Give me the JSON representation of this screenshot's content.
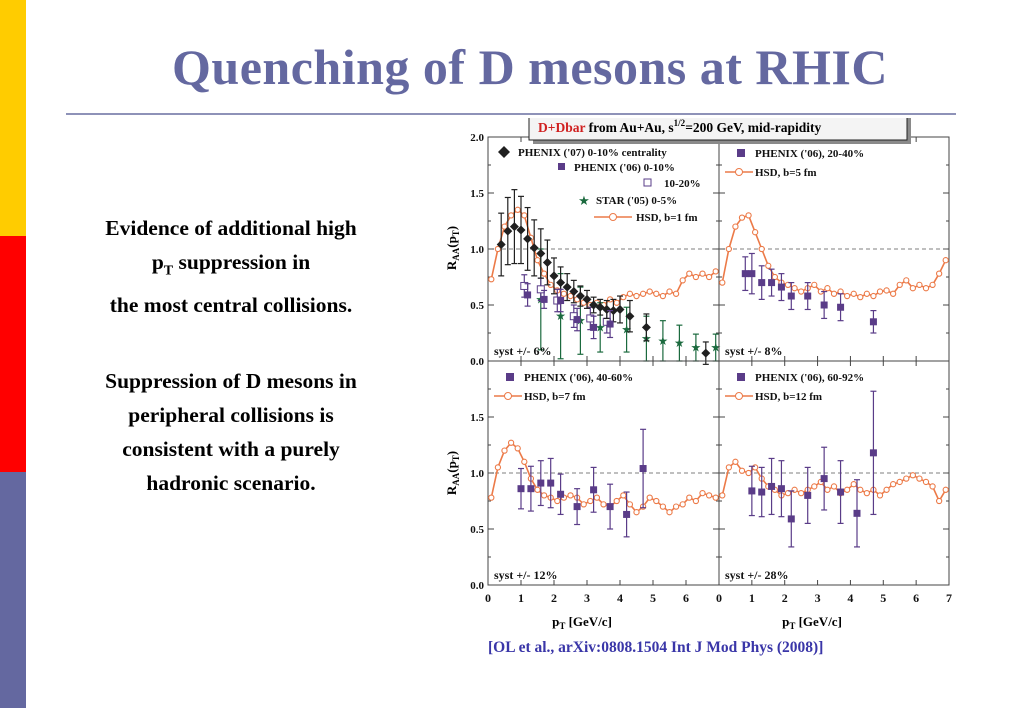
{
  "slide": {
    "title": "Quenching of D mesons at RHIC",
    "bullet1_a": "Evidence of additional  high",
    "bullet1_p": "p",
    "bullet1_sub": "T",
    "bullet1_b": " suppression in",
    "bullet1_c": "the most central collisions.",
    "bullet2_a": "Suppression of D mesons in",
    "bullet2_b": "peripheral collisions is",
    "bullet2_c": "consistent with a purely",
    "bullet2_d": "hadronic scenario.",
    "citation": "[OL et al., arXiv:0808.1504  Int J Mod Phys (2008)]",
    "stripe_colors": [
      "#ffcc00",
      "#ff0000",
      "#6468a0"
    ],
    "title_color": "#6468a0"
  },
  "chart_data": {
    "type": "scatter",
    "header": {
      "red_part": "D+Dbar",
      "text1": " from Au+Au, s",
      "sup": "1/2",
      "text2": "=200 GeV, mid-rapidity"
    },
    "ylabel": "R_AA(p_T)",
    "ylabel_main": "R",
    "ylabel_sub": "AA",
    "ylabel_paren": "(p",
    "ylabel_paren_sub": "T",
    "ylabel_close": ")",
    "xlabel_main": "p",
    "xlabel_sub": "T",
    "xlabel_unit": " [GeV/c]",
    "xlim": [
      0,
      7
    ],
    "ylim": [
      0,
      2
    ],
    "y_ticks": [
      "0.0",
      "0.5",
      "1.0",
      "1.5",
      "2.0"
    ],
    "x_ticks_left": [
      "0",
      "1",
      "2",
      "3",
      "4",
      "5",
      "6"
    ],
    "x_ticks_right": [
      "0",
      "1",
      "2",
      "3",
      "4",
      "5",
      "6",
      "7"
    ],
    "reference_line": 1.0,
    "colors": {
      "phenix": "#5a3c88",
      "phenix07": "#202020",
      "star": "#1b6a3e",
      "hsd": "#ec7a48",
      "header_red": "#d02020"
    },
    "panels": [
      {
        "id": "0-10",
        "syst": "syst +/- 6%",
        "legend": [
          "PHENIX ('07) 0-10% centrality",
          "PHENIX ('06) 0-10%",
          "10-20%",
          "STAR ('05) 0-5%",
          "HSD, b=1 fm"
        ],
        "hsd": [
          [
            0.1,
            0.73
          ],
          [
            0.3,
            1.0
          ],
          [
            0.5,
            1.2
          ],
          [
            0.7,
            1.3
          ],
          [
            0.9,
            1.35
          ],
          [
            1.1,
            1.3
          ],
          [
            1.3,
            1.1
          ],
          [
            1.5,
            0.9
          ],
          [
            1.7,
            0.78
          ],
          [
            1.9,
            0.68
          ],
          [
            2.1,
            0.63
          ],
          [
            2.3,
            0.6
          ],
          [
            2.5,
            0.58
          ],
          [
            2.7,
            0.55
          ],
          [
            2.9,
            0.52
          ],
          [
            3.1,
            0.5
          ],
          [
            3.3,
            0.52
          ],
          [
            3.5,
            0.5
          ],
          [
            3.7,
            0.55
          ],
          [
            3.9,
            0.52
          ],
          [
            4.1,
            0.57
          ],
          [
            4.3,
            0.6
          ],
          [
            4.5,
            0.58
          ],
          [
            4.7,
            0.6
          ],
          [
            4.9,
            0.62
          ],
          [
            5.1,
            0.6
          ],
          [
            5.3,
            0.58
          ],
          [
            5.5,
            0.62
          ],
          [
            5.7,
            0.6
          ],
          [
            5.9,
            0.72
          ],
          [
            6.1,
            0.78
          ],
          [
            6.3,
            0.75
          ],
          [
            6.5,
            0.78
          ],
          [
            6.7,
            0.75
          ],
          [
            6.9,
            0.8
          ]
        ],
        "phenix07": [
          [
            0.4,
            1.04,
            0.28
          ],
          [
            0.6,
            1.16,
            0.3
          ],
          [
            0.8,
            1.2,
            0.33
          ],
          [
            1.0,
            1.17,
            0.3
          ],
          [
            1.2,
            1.09,
            0.28
          ],
          [
            1.4,
            1.01,
            0.25
          ],
          [
            1.6,
            0.96,
            0.22
          ],
          [
            1.8,
            0.88,
            0.2
          ],
          [
            2.0,
            0.76,
            0.16
          ],
          [
            2.2,
            0.7,
            0.14
          ],
          [
            2.4,
            0.66,
            0.12
          ],
          [
            2.6,
            0.62,
            0.1
          ],
          [
            2.8,
            0.58,
            0.09
          ],
          [
            3.0,
            0.55,
            0.08
          ],
          [
            3.2,
            0.5,
            0.07
          ],
          [
            3.4,
            0.48,
            0.07
          ],
          [
            3.6,
            0.46,
            0.08
          ],
          [
            3.8,
            0.45,
            0.1
          ],
          [
            4.0,
            0.46,
            0.12
          ],
          [
            4.3,
            0.4,
            0.14
          ],
          [
            4.8,
            0.3,
            0.12
          ],
          [
            6.6,
            0.07,
            0.1
          ]
        ],
        "phenix06": [
          [
            1.2,
            0.59,
            0.1
          ],
          [
            1.7,
            0.55,
            0.08
          ],
          [
            2.2,
            0.54,
            0.1
          ],
          [
            2.7,
            0.37,
            0.1
          ],
          [
            3.2,
            0.3,
            0.1
          ],
          [
            3.7,
            0.33,
            0.12
          ]
        ],
        "phenix06_1020": [
          [
            1.1,
            0.67,
            0.1
          ],
          [
            1.6,
            0.64,
            0.1
          ],
          [
            2.1,
            0.54,
            0.1
          ],
          [
            2.6,
            0.4,
            0.1
          ],
          [
            3.1,
            0.38,
            0.1
          ],
          [
            3.6,
            0.35,
            0.1
          ]
        ],
        "star": [
          [
            1.6,
            0.55,
            0.45
          ],
          [
            2.2,
            0.4,
            0.38
          ],
          [
            2.8,
            0.36,
            0.3
          ],
          [
            3.4,
            0.3,
            0.22
          ],
          [
            4.2,
            0.28,
            0.2
          ],
          [
            4.8,
            0.2,
            0.2
          ],
          [
            5.3,
            0.18,
            0.18
          ],
          [
            5.8,
            0.16,
            0.16
          ],
          [
            6.3,
            0.12,
            0.12
          ],
          [
            6.9,
            0.12,
            0.12
          ]
        ]
      },
      {
        "id": "20-40",
        "syst": "syst +/- 8%",
        "legend": [
          "PHENIX ('06), 20-40%",
          "HSD, b=5 fm"
        ],
        "hsd": [
          [
            0.1,
            0.7
          ],
          [
            0.3,
            1.0
          ],
          [
            0.5,
            1.2
          ],
          [
            0.7,
            1.28
          ],
          [
            0.9,
            1.3
          ],
          [
            1.1,
            1.15
          ],
          [
            1.3,
            1.0
          ],
          [
            1.5,
            0.85
          ],
          [
            1.7,
            0.75
          ],
          [
            1.9,
            0.7
          ],
          [
            2.1,
            0.68
          ],
          [
            2.3,
            0.65
          ],
          [
            2.5,
            0.62
          ],
          [
            2.7,
            0.65
          ],
          [
            2.9,
            0.68
          ],
          [
            3.1,
            0.62
          ],
          [
            3.3,
            0.65
          ],
          [
            3.5,
            0.6
          ],
          [
            3.7,
            0.62
          ],
          [
            3.9,
            0.58
          ],
          [
            4.1,
            0.6
          ],
          [
            4.3,
            0.57
          ],
          [
            4.5,
            0.6
          ],
          [
            4.7,
            0.58
          ],
          [
            4.9,
            0.62
          ],
          [
            5.1,
            0.63
          ],
          [
            5.3,
            0.6
          ],
          [
            5.5,
            0.68
          ],
          [
            5.7,
            0.72
          ],
          [
            5.9,
            0.65
          ],
          [
            6.1,
            0.68
          ],
          [
            6.3,
            0.65
          ],
          [
            6.5,
            0.68
          ],
          [
            6.7,
            0.78
          ],
          [
            6.9,
            0.9
          ]
        ],
        "phenix06": [
          [
            0.8,
            0.78,
            0.15
          ],
          [
            1.0,
            0.78,
            0.18
          ],
          [
            1.3,
            0.7,
            0.15
          ],
          [
            1.6,
            0.7,
            0.12
          ],
          [
            1.9,
            0.66,
            0.12
          ],
          [
            2.2,
            0.58,
            0.12
          ],
          [
            2.7,
            0.58,
            0.12
          ],
          [
            3.2,
            0.5,
            0.12
          ],
          [
            3.7,
            0.48,
            0.12
          ],
          [
            4.7,
            0.35,
            0.1
          ]
        ]
      },
      {
        "id": "40-60",
        "syst": "syst +/- 12%",
        "legend": [
          "PHENIX ('06), 40-60%",
          "HSD, b=7 fm"
        ],
        "hsd": [
          [
            0.1,
            0.78
          ],
          [
            0.3,
            1.05
          ],
          [
            0.5,
            1.2
          ],
          [
            0.7,
            1.27
          ],
          [
            0.9,
            1.22
          ],
          [
            1.1,
            1.1
          ],
          [
            1.3,
            0.95
          ],
          [
            1.5,
            0.85
          ],
          [
            1.7,
            0.8
          ],
          [
            1.9,
            0.78
          ],
          [
            2.1,
            0.75
          ],
          [
            2.3,
            0.78
          ],
          [
            2.5,
            0.8
          ],
          [
            2.7,
            0.78
          ],
          [
            2.9,
            0.72
          ],
          [
            3.1,
            0.75
          ],
          [
            3.3,
            0.78
          ],
          [
            3.5,
            0.72
          ],
          [
            3.7,
            0.7
          ],
          [
            3.9,
            0.75
          ],
          [
            4.1,
            0.8
          ],
          [
            4.3,
            0.72
          ],
          [
            4.5,
            0.65
          ],
          [
            4.7,
            0.7
          ],
          [
            4.9,
            0.78
          ],
          [
            5.1,
            0.75
          ],
          [
            5.3,
            0.7
          ],
          [
            5.5,
            0.65
          ],
          [
            5.7,
            0.7
          ],
          [
            5.9,
            0.72
          ],
          [
            6.1,
            0.78
          ],
          [
            6.3,
            0.75
          ],
          [
            6.5,
            0.82
          ],
          [
            6.7,
            0.8
          ],
          [
            6.9,
            0.78
          ]
        ],
        "phenix06": [
          [
            1.0,
            0.86,
            0.18
          ],
          [
            1.3,
            0.86,
            0.2
          ],
          [
            1.6,
            0.91,
            0.2
          ],
          [
            1.9,
            0.91,
            0.22
          ],
          [
            2.2,
            0.81,
            0.18
          ],
          [
            2.7,
            0.7,
            0.16
          ],
          [
            3.2,
            0.85,
            0.2
          ],
          [
            3.7,
            0.7,
            0.2
          ],
          [
            4.2,
            0.63,
            0.2
          ],
          [
            4.7,
            1.04,
            0.35
          ]
        ]
      },
      {
        "id": "60-92",
        "syst": "syst +/- 28%",
        "legend": [
          "PHENIX ('06), 60-92%",
          "HSD, b=12 fm"
        ],
        "hsd": [
          [
            0.1,
            0.8
          ],
          [
            0.3,
            1.05
          ],
          [
            0.5,
            1.1
          ],
          [
            0.7,
            1.02
          ],
          [
            0.9,
            1.0
          ],
          [
            1.1,
            1.05
          ],
          [
            1.3,
            0.95
          ],
          [
            1.5,
            0.88
          ],
          [
            1.7,
            0.85
          ],
          [
            1.9,
            0.8
          ],
          [
            2.1,
            0.82
          ],
          [
            2.3,
            0.85
          ],
          [
            2.5,
            0.82
          ],
          [
            2.7,
            0.85
          ],
          [
            2.9,
            0.88
          ],
          [
            3.1,
            0.92
          ],
          [
            3.3,
            0.85
          ],
          [
            3.5,
            0.88
          ],
          [
            3.7,
            0.82
          ],
          [
            3.9,
            0.85
          ],
          [
            4.1,
            0.9
          ],
          [
            4.3,
            0.85
          ],
          [
            4.5,
            0.82
          ],
          [
            4.7,
            0.85
          ],
          [
            4.9,
            0.8
          ],
          [
            5.1,
            0.85
          ],
          [
            5.3,
            0.9
          ],
          [
            5.5,
            0.92
          ],
          [
            5.7,
            0.95
          ],
          [
            5.9,
            0.98
          ],
          [
            6.1,
            0.95
          ],
          [
            6.3,
            0.92
          ],
          [
            6.5,
            0.88
          ],
          [
            6.7,
            0.75
          ],
          [
            6.9,
            0.85
          ]
        ],
        "phenix06": [
          [
            1.0,
            0.84,
            0.22
          ],
          [
            1.3,
            0.83,
            0.22
          ],
          [
            1.6,
            0.88,
            0.25
          ],
          [
            1.9,
            0.86,
            0.25
          ],
          [
            2.2,
            0.59,
            0.25
          ],
          [
            2.7,
            0.8,
            0.25
          ],
          [
            3.2,
            0.95,
            0.28
          ],
          [
            3.7,
            0.83,
            0.28
          ],
          [
            4.2,
            0.64,
            0.3
          ],
          [
            4.7,
            1.18,
            0.55
          ]
        ]
      }
    ]
  }
}
